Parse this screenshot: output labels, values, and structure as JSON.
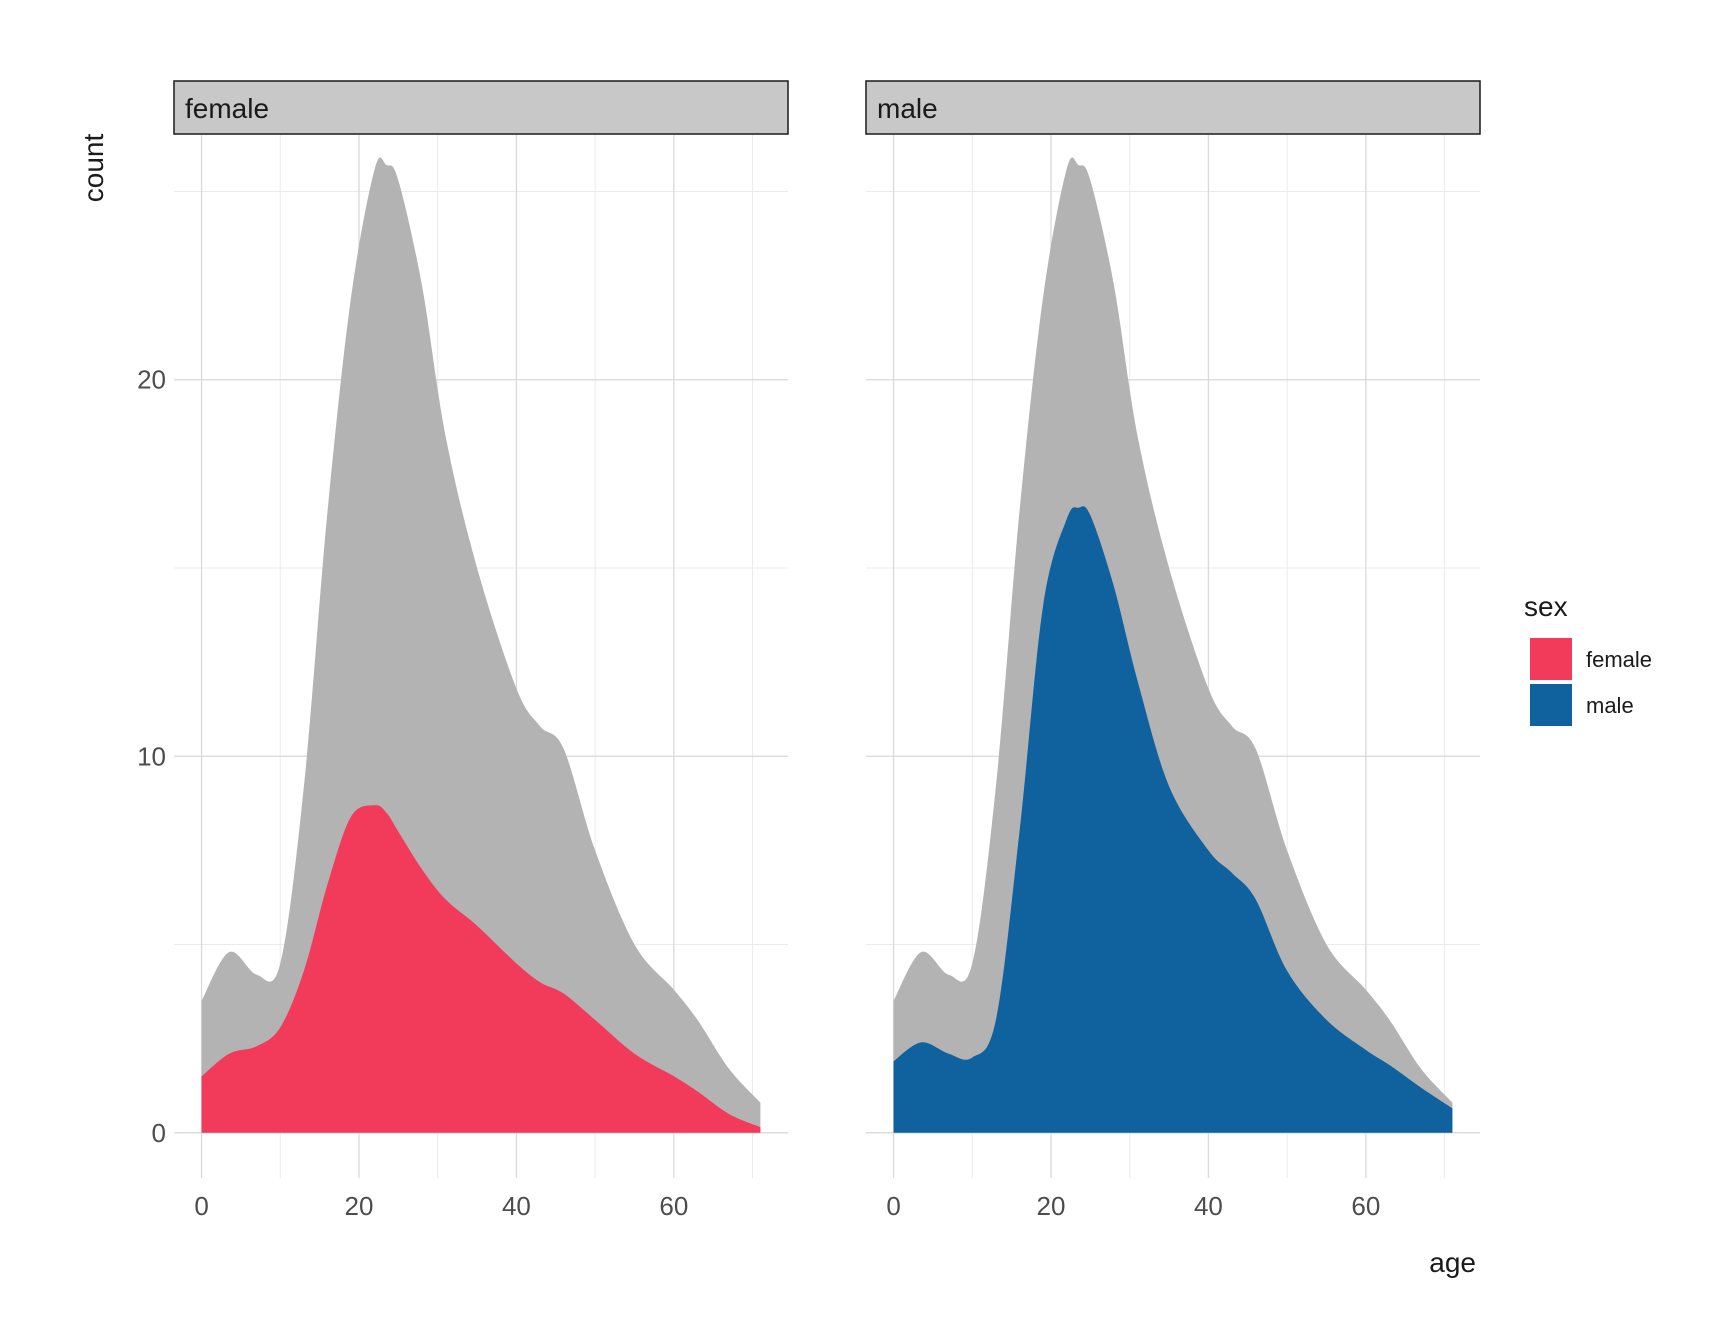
{
  "chart_data": {
    "type": "area",
    "xlabel": "age",
    "ylabel": "count",
    "x_ticks": [
      0,
      20,
      40,
      60
    ],
    "y_ticks": [
      0,
      10,
      20
    ],
    "xlim": [
      -3.5,
      74.5
    ],
    "ylim": [
      -1.2,
      26.5
    ],
    "grid": true,
    "legend": {
      "title": "sex",
      "position": "right",
      "entries": [
        {
          "name": "female",
          "color": "#F23B5A"
        },
        {
          "name": "male",
          "color": "#10629E"
        }
      ]
    },
    "total_color": "#B3B3B3",
    "x": [
      0,
      3.5,
      7,
      10,
      13,
      16,
      19,
      22,
      23.5,
      25,
      28,
      31,
      35,
      40,
      43,
      46,
      50,
      55,
      60,
      63,
      67,
      71
    ],
    "total": [
      3.5,
      4.8,
      4.2,
      4.5,
      9.2,
      16.5,
      22.2,
      25.6,
      25.7,
      25.3,
      22.5,
      18.5,
      15.0,
      11.8,
      10.8,
      10.2,
      7.5,
      5.0,
      3.8,
      3.0,
      1.7,
      0.8
    ],
    "panels": [
      {
        "name": "female",
        "color": "#F23B5A",
        "values": [
          1.5,
          2.1,
          2.3,
          2.8,
          4.3,
          6.6,
          8.4,
          8.7,
          8.5,
          8.0,
          7.0,
          6.2,
          5.5,
          4.5,
          4.0,
          3.7,
          3.0,
          2.1,
          1.5,
          1.1,
          0.5,
          0.15
        ]
      },
      {
        "name": "male",
        "color": "#10629E",
        "values": [
          1.9,
          2.4,
          2.1,
          2.0,
          3.0,
          8.0,
          14.0,
          16.3,
          16.6,
          16.4,
          14.5,
          12.0,
          9.2,
          7.5,
          6.9,
          6.2,
          4.3,
          3.0,
          2.2,
          1.8,
          1.2,
          0.65
        ]
      }
    ]
  }
}
